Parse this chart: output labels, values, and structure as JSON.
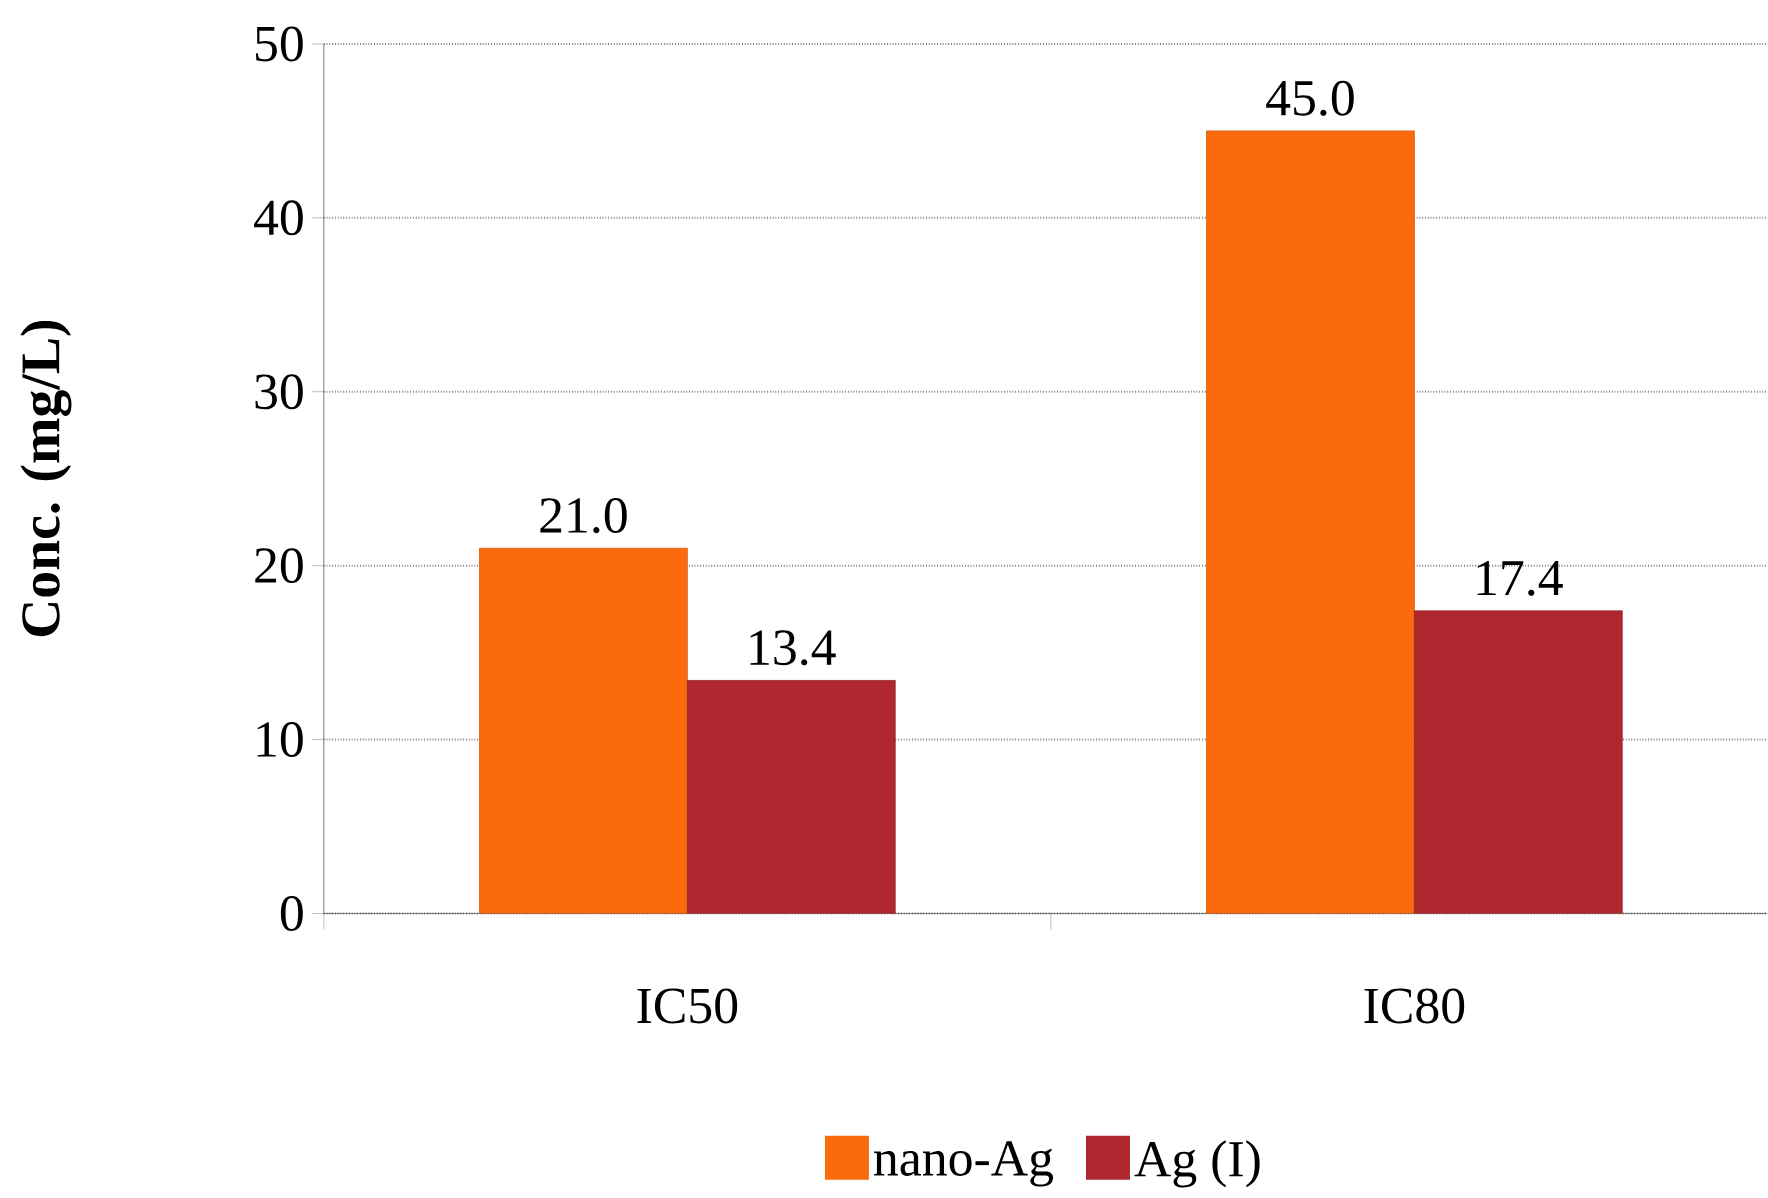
{
  "chart_data": {
    "type": "bar",
    "ylabel": "Conc. (mg/L)",
    "categories": [
      "IC50",
      "IC80"
    ],
    "series": [
      {
        "name": "nano-Ag",
        "color": "#fb6a0c",
        "values": [
          21.0,
          45.0
        ],
        "value_labels": [
          "21.0",
          "45.0"
        ]
      },
      {
        "name": "Ag (I)",
        "color": "#b0282f",
        "values": [
          13.4,
          17.4
        ],
        "value_labels": [
          "13.4",
          "17.4"
        ]
      }
    ],
    "ylim": [
      0,
      50
    ],
    "yticks": [
      0,
      10,
      20,
      30,
      40,
      50
    ],
    "grid": "y",
    "legend": "bottom"
  }
}
